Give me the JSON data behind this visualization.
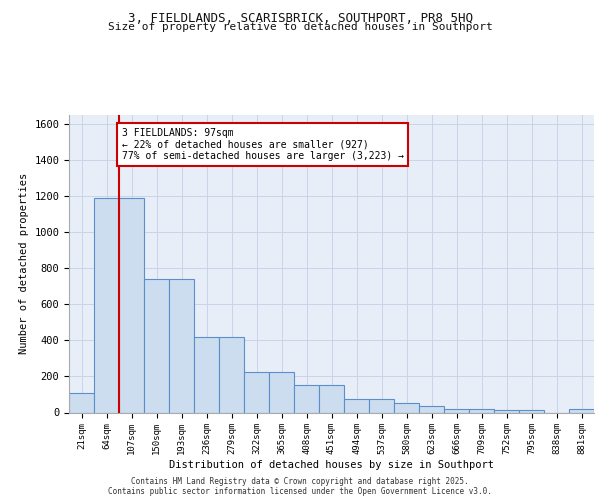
{
  "title_line1": "3, FIELDLANDS, SCARISBRICK, SOUTHPORT, PR8 5HQ",
  "title_line2": "Size of property relative to detached houses in Southport",
  "xlabel": "Distribution of detached houses by size in Southport",
  "ylabel": "Number of detached properties",
  "footer_line1": "Contains HM Land Registry data © Crown copyright and database right 2025.",
  "footer_line2": "Contains public sector information licensed under the Open Government Licence v3.0.",
  "categories": [
    "21sqm",
    "64sqm",
    "107sqm",
    "150sqm",
    "193sqm",
    "236sqm",
    "279sqm",
    "322sqm",
    "365sqm",
    "408sqm",
    "451sqm",
    "494sqm",
    "537sqm",
    "580sqm",
    "623sqm",
    "666sqm",
    "709sqm",
    "752sqm",
    "795sqm",
    "838sqm",
    "881sqm"
  ],
  "values": [
    108,
    1190,
    1190,
    740,
    740,
    420,
    420,
    225,
    225,
    150,
    150,
    75,
    75,
    50,
    35,
    20,
    20,
    15,
    15,
    0,
    20
  ],
  "bar_color": "#ccddf0",
  "bar_edge_color": "#5b8fc9",
  "red_line_x": 2,
  "annotation_text": "3 FIELDLANDS: 97sqm\n← 22% of detached houses are smaller (927)\n77% of semi-detached houses are larger (3,223) →",
  "annotation_box_color": "#ffffff",
  "annotation_box_edge": "#cc0000",
  "ylim": [
    0,
    1650
  ],
  "yticks": [
    0,
    200,
    400,
    600,
    800,
    1000,
    1200,
    1400,
    1600
  ],
  "grid_color": "#c8d4e8",
  "background_color": "#e8eef8"
}
